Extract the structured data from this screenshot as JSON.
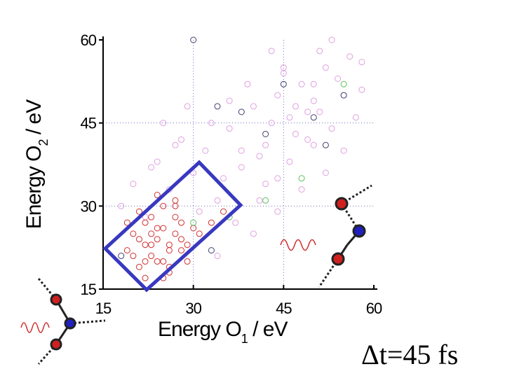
{
  "chart_data": {
    "type": "scatter",
    "xlabel": {
      "text": "Energy O",
      "sub": "1",
      "unit": " / eV"
    },
    "ylabel": {
      "text": "Energy O",
      "sub": "2",
      "unit": " / eV"
    },
    "annotation": "Δt=45 fs",
    "xlim": [
      15,
      60
    ],
    "ylim": [
      15,
      60
    ],
    "xticks": [
      15,
      30,
      45,
      60
    ],
    "yticks": [
      15,
      30,
      45,
      60
    ],
    "grid": true,
    "series": [
      {
        "color": "#e0a0e0",
        "x": [
          18,
          20,
          22,
          24,
          26,
          28,
          30,
          32,
          34,
          36,
          38,
          40,
          42,
          44,
          46,
          48,
          50,
          52,
          54,
          56,
          58,
          41,
          43,
          45,
          47,
          49,
          51,
          53,
          55,
          57,
          39,
          42,
          44,
          46,
          48,
          50,
          52,
          37,
          40,
          35,
          33,
          31,
          29,
          27,
          25,
          23,
          38,
          45,
          50,
          55,
          47,
          43,
          49,
          53,
          36,
          44,
          51,
          58,
          34,
          41
        ],
        "y": [
          30,
          34,
          28,
          38,
          33,
          42,
          36,
          40,
          31,
          44,
          37,
          48,
          41,
          50,
          46,
          52,
          49,
          55,
          53,
          57,
          51,
          39,
          45,
          55,
          43,
          47,
          58,
          44,
          50,
          46,
          52,
          34,
          29,
          38,
          33,
          41,
          36,
          27,
          25,
          35,
          45,
          29,
          48,
          41,
          45,
          37,
          40,
          54,
          52,
          40,
          48,
          58,
          42,
          60,
          49,
          35,
          47,
          56,
          21,
          31
        ]
      },
      {
        "color": "#d03030",
        "x": [
          19,
          20,
          21,
          22,
          23,
          24,
          25,
          26,
          27,
          28,
          21,
          22,
          23,
          24,
          25,
          26,
          27,
          28,
          29,
          20,
          22,
          24,
          26,
          28,
          30,
          23,
          25,
          27,
          21,
          19,
          24,
          26,
          29,
          31,
          22,
          25,
          27,
          23,
          33,
          35
        ],
        "y": [
          22,
          25,
          19,
          27,
          23,
          20,
          26,
          22,
          28,
          24,
          29,
          17,
          21,
          24,
          30,
          19,
          25,
          27,
          23,
          21,
          23,
          26,
          18,
          22,
          26,
          28,
          20,
          30,
          24,
          27,
          32,
          23,
          20,
          25,
          20,
          17,
          31,
          25,
          27,
          29
        ]
      },
      {
        "color": "#404070",
        "x": [
          30,
          34,
          38,
          45,
          50,
          52,
          33,
          42,
          18,
          55
        ],
        "y": [
          60,
          48,
          47,
          52,
          46,
          41,
          22,
          43,
          21,
          50
        ]
      },
      {
        "color": "#60c060",
        "x": [
          30,
          42,
          48,
          55,
          36
        ],
        "y": [
          27,
          31,
          35,
          52,
          28
        ]
      }
    ]
  }
}
